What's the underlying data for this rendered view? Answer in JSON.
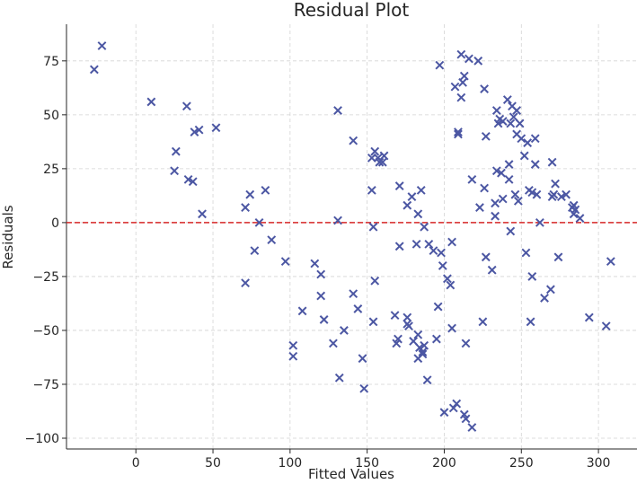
{
  "chart_data": {
    "type": "scatter",
    "title": "Residual Plot",
    "xlabel": "Fitted Values",
    "ylabel": "Residuals",
    "xlim": [
      -45,
      325
    ],
    "ylim": [
      -105,
      92
    ],
    "xticks": [
      0,
      50,
      100,
      150,
      200,
      250,
      300
    ],
    "yticks": [
      -100,
      -75,
      -50,
      -25,
      0,
      25,
      50,
      75
    ],
    "grid": true,
    "marker": "x",
    "marker_color": "#4c57a3",
    "reference_line": {
      "y": 0,
      "color": "#d62728",
      "style": "dashed"
    },
    "points": [
      [
        -27,
        71
      ],
      [
        -22,
        82
      ],
      [
        10,
        56
      ],
      [
        25,
        24
      ],
      [
        26,
        33
      ],
      [
        33,
        54
      ],
      [
        34,
        20
      ],
      [
        37,
        19
      ],
      [
        38,
        42
      ],
      [
        41,
        43
      ],
      [
        43,
        4
      ],
      [
        52,
        44
      ],
      [
        71,
        7
      ],
      [
        71,
        -28
      ],
      [
        74,
        13
      ],
      [
        77,
        -13
      ],
      [
        80,
        0
      ],
      [
        84,
        15
      ],
      [
        88,
        -8
      ],
      [
        97,
        -18
      ],
      [
        102,
        -57
      ],
      [
        102,
        -62
      ],
      [
        108,
        -41
      ],
      [
        116,
        -19
      ],
      [
        120,
        -24
      ],
      [
        120,
        -34
      ],
      [
        122,
        -45
      ],
      [
        128,
        -56
      ],
      [
        131,
        52
      ],
      [
        131,
        1
      ],
      [
        132,
        -72
      ],
      [
        135,
        -50
      ],
      [
        141,
        38
      ],
      [
        141,
        -33
      ],
      [
        144,
        -40
      ],
      [
        147,
        -63
      ],
      [
        148,
        -77
      ],
      [
        153,
        30
      ],
      [
        153,
        15
      ],
      [
        154,
        -2
      ],
      [
        154,
        -46
      ],
      [
        155,
        33
      ],
      [
        155,
        -27
      ],
      [
        157,
        30
      ],
      [
        158,
        28
      ],
      [
        160,
        28
      ],
      [
        161,
        31
      ],
      [
        168,
        -43
      ],
      [
        169,
        -56
      ],
      [
        170,
        -54
      ],
      [
        171,
        17
      ],
      [
        171,
        -11
      ],
      [
        176,
        8
      ],
      [
        176,
        -44
      ],
      [
        176,
        -47
      ],
      [
        177,
        -48
      ],
      [
        179,
        12
      ],
      [
        180,
        -55
      ],
      [
        182,
        -10
      ],
      [
        183,
        4
      ],
      [
        183,
        -52
      ],
      [
        183,
        -63
      ],
      [
        184,
        -58
      ],
      [
        185,
        15
      ],
      [
        186,
        -61
      ],
      [
        186,
        -60
      ],
      [
        187,
        -2
      ],
      [
        187,
        -57
      ],
      [
        189,
        -73
      ],
      [
        190,
        -10
      ],
      [
        193,
        -13
      ],
      [
        195,
        -54
      ],
      [
        196,
        -39
      ],
      [
        197,
        73
      ],
      [
        198,
        -14
      ],
      [
        199,
        -20
      ],
      [
        200,
        -88
      ],
      [
        202,
        -26
      ],
      [
        204,
        -29
      ],
      [
        205,
        -9
      ],
      [
        205,
        -49
      ],
      [
        206,
        -86
      ],
      [
        207,
        63
      ],
      [
        208,
        -84
      ],
      [
        209,
        42
      ],
      [
        209,
        41
      ],
      [
        211,
        78
      ],
      [
        211,
        58
      ],
      [
        212,
        65
      ],
      [
        213,
        68
      ],
      [
        213,
        -89
      ],
      [
        214,
        -56
      ],
      [
        214,
        -91
      ],
      [
        216,
        76
      ],
      [
        218,
        20
      ],
      [
        218,
        -95
      ],
      [
        222,
        75
      ],
      [
        223,
        7
      ],
      [
        225,
        -46
      ],
      [
        226,
        62
      ],
      [
        226,
        16
      ],
      [
        227,
        40
      ],
      [
        227,
        -16
      ],
      [
        231,
        -22
      ],
      [
        233,
        3
      ],
      [
        233,
        9
      ],
      [
        234,
        52
      ],
      [
        234,
        24
      ],
      [
        235,
        46
      ],
      [
        236,
        48
      ],
      [
        237,
        23
      ],
      [
        238,
        47
      ],
      [
        238,
        11
      ],
      [
        241,
        57
      ],
      [
        242,
        20
      ],
      [
        242,
        27
      ],
      [
        243,
        -4
      ],
      [
        243,
        46
      ],
      [
        244,
        54
      ],
      [
        245,
        49
      ],
      [
        246,
        13
      ],
      [
        247,
        41
      ],
      [
        247,
        52
      ],
      [
        248,
        10
      ],
      [
        249,
        46
      ],
      [
        250,
        39
      ],
      [
        252,
        31
      ],
      [
        253,
        -14
      ],
      [
        254,
        37
      ],
      [
        255,
        15
      ],
      [
        256,
        -46
      ],
      [
        257,
        14
      ],
      [
        257,
        -25
      ],
      [
        259,
        39
      ],
      [
        259,
        27
      ],
      [
        260,
        13
      ],
      [
        262,
        0
      ],
      [
        265,
        -35
      ],
      [
        269,
        -31
      ],
      [
        270,
        28
      ],
      [
        270,
        12
      ],
      [
        271,
        13
      ],
      [
        272,
        18
      ],
      [
        274,
        -16
      ],
      [
        276,
        12
      ],
      [
        279,
        13
      ],
      [
        283,
        7
      ],
      [
        284,
        4
      ],
      [
        284,
        8
      ],
      [
        285,
        6
      ],
      [
        288,
        2
      ],
      [
        294,
        -44
      ],
      [
        305,
        -48
      ],
      [
        308,
        -18
      ]
    ]
  }
}
